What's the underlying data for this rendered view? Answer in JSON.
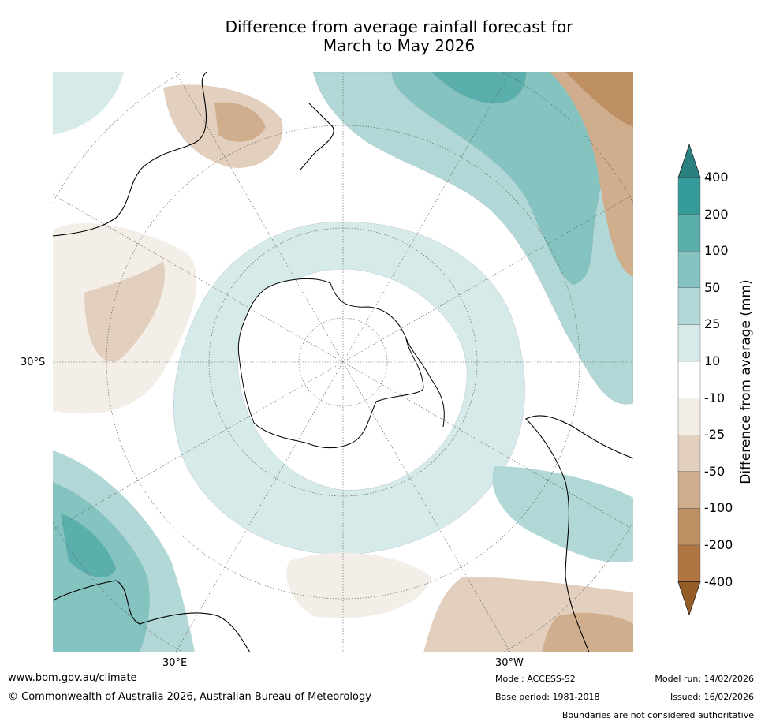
{
  "title_line1": "Difference from average rainfall forecast for",
  "title_line2": "March to May 2026",
  "latitude_label": "30°S",
  "longitude_labels": [
    "30°E",
    "30°W"
  ],
  "colorbar": {
    "title": "Difference from average (mm)",
    "tick_labels": [
      "400",
      "200",
      "100",
      "50",
      "25",
      "10",
      "-10",
      "-25",
      "-50",
      "-100",
      "-200",
      "-400"
    ],
    "colors": [
      "#2a7f7f",
      "#339c9a",
      "#5aaeac",
      "#85c3c1",
      "#b1d8d7",
      "#d6eae9",
      "#ffffff",
      "#f3eee8",
      "#e3cfbd",
      "#d0ad8d",
      "#bf8f64",
      "#ae7442",
      "#945c27"
    ]
  },
  "footer": {
    "website": "www.bom.gov.au/climate",
    "copyright": "© Commonwealth of Australia 2026, Australian Bureau of Meteorology",
    "model": "Model: ACCESS-S2",
    "base_period": "Base period: 1981-2018",
    "model_run": "Model run: 14/02/2026",
    "issued": "Issued: 16/02/2026",
    "disclaimer": "Boundaries are not considered authoritative"
  }
}
